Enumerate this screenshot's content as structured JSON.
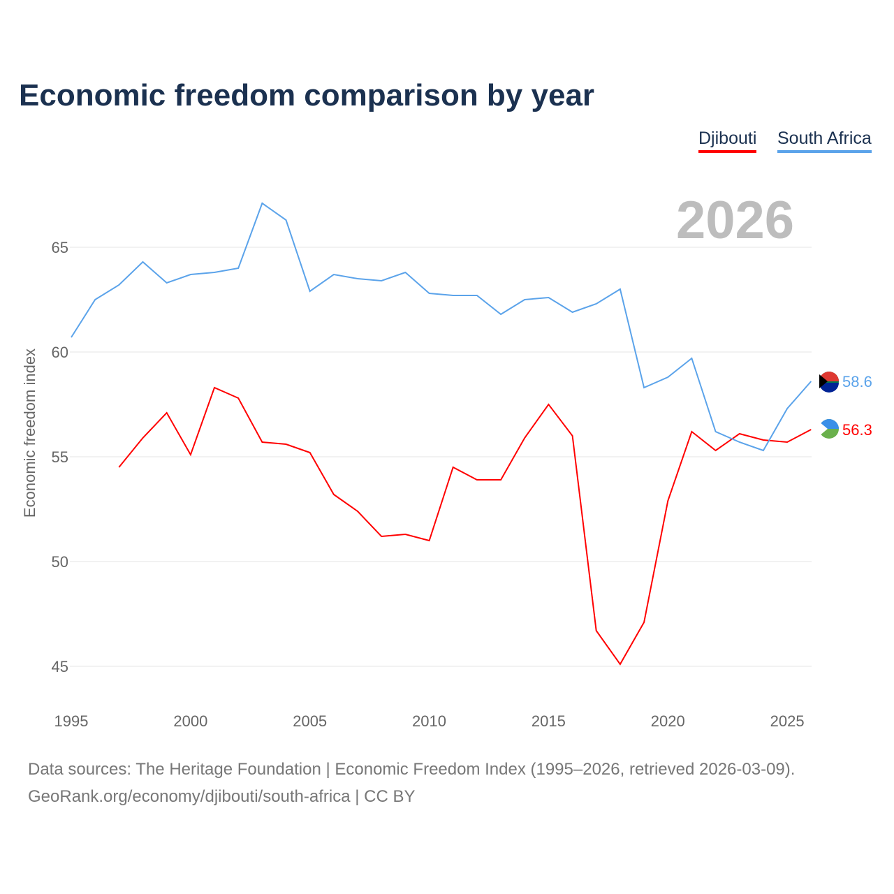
{
  "title": "Economic freedom comparison by year",
  "current_year": "2026",
  "footer": {
    "line1": "Data sources: The Heritage Foundation | Economic Freedom Index (1995–2026, retrieved 2026-03-09).",
    "line2": "GeoRank.org/economy/djibouti/south-africa | CC BY"
  },
  "chart_data": {
    "type": "line",
    "title": "Economic freedom comparison by year",
    "xlabel": "",
    "ylabel": "Economic freedom index",
    "xlim": [
      1995,
      2026
    ],
    "ylim": [
      43.5,
      68.5
    ],
    "xticks": [
      "1995",
      "2000",
      "2005",
      "2010",
      "2015",
      "2020",
      "2025"
    ],
    "yticks": [
      "45",
      "50",
      "55",
      "60",
      "65"
    ],
    "grid": true,
    "legend_position": "top-right",
    "x": [
      1995,
      1996,
      1997,
      1998,
      1999,
      2000,
      2001,
      2002,
      2003,
      2004,
      2005,
      2006,
      2007,
      2008,
      2009,
      2010,
      2011,
      2012,
      2013,
      2014,
      2015,
      2016,
      2017,
      2018,
      2019,
      2020,
      2021,
      2022,
      2023,
      2024,
      2025,
      2026
    ],
    "series": [
      {
        "name": "Djibouti",
        "color": "#ff0000",
        "end_label": "56.3",
        "values": [
          null,
          null,
          54.5,
          55.9,
          57.1,
          55.1,
          58.3,
          57.8,
          55.7,
          55.6,
          55.2,
          53.2,
          52.4,
          51.2,
          51.3,
          51.0,
          54.5,
          53.9,
          53.9,
          55.9,
          57.5,
          56.0,
          46.7,
          45.1,
          47.1,
          52.9,
          56.2,
          55.3,
          56.1,
          55.8,
          55.7,
          56.3
        ]
      },
      {
        "name": "South Africa",
        "color": "#5ba3ea",
        "end_label": "58.6",
        "values": [
          60.7,
          62.5,
          63.2,
          64.3,
          63.3,
          63.7,
          63.8,
          64.0,
          67.1,
          66.3,
          62.9,
          63.7,
          63.5,
          63.4,
          63.8,
          62.8,
          62.7,
          62.7,
          61.8,
          62.5,
          62.6,
          61.9,
          62.3,
          63.0,
          58.3,
          58.8,
          59.7,
          56.2,
          55.7,
          55.3,
          57.3,
          58.6
        ]
      }
    ]
  }
}
